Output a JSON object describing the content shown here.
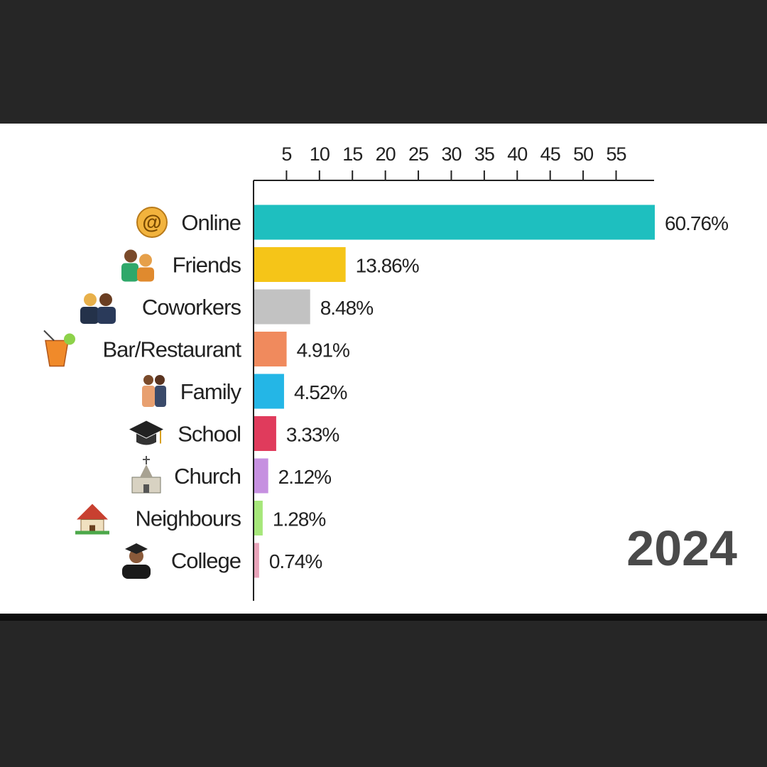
{
  "chart_data": {
    "type": "bar",
    "orientation": "horizontal",
    "categories": [
      "Online",
      "Friends",
      "Coworkers",
      "Bar/Restaurant",
      "Family",
      "School",
      "Church",
      "Neighbours",
      "College"
    ],
    "icons": [
      "at-sign-icon",
      "friends-icon",
      "coworkers-icon",
      "cocktail-icon",
      "family-icon",
      "graduation-cap-icon",
      "church-icon",
      "house-icon",
      "graduate-icon"
    ],
    "values": [
      60.76,
      13.86,
      8.48,
      4.91,
      4.52,
      3.33,
      2.12,
      1.28,
      0.74
    ],
    "value_labels": [
      "60.76%",
      "13.86%",
      "8.48%",
      "4.91%",
      "4.52%",
      "3.33%",
      "2.12%",
      "1.28%",
      "0.74%"
    ],
    "colors": [
      "#1ebfbf",
      "#f5c518",
      "#c2c2c2",
      "#f08a5d",
      "#24b6e6",
      "#e03b5c",
      "#c690e0",
      "#a6e77a",
      "#e8a3b9"
    ],
    "x_ticks": [
      "5",
      "10",
      "15",
      "20",
      "25",
      "30",
      "35",
      "40",
      "45",
      "50",
      "55"
    ],
    "x_tick_values": [
      5,
      10,
      15,
      20,
      25,
      30,
      35,
      40,
      45,
      50,
      55
    ],
    "xlim": [
      0,
      60.76
    ],
    "axis_position": "top",
    "grid": false,
    "year": "2024"
  }
}
